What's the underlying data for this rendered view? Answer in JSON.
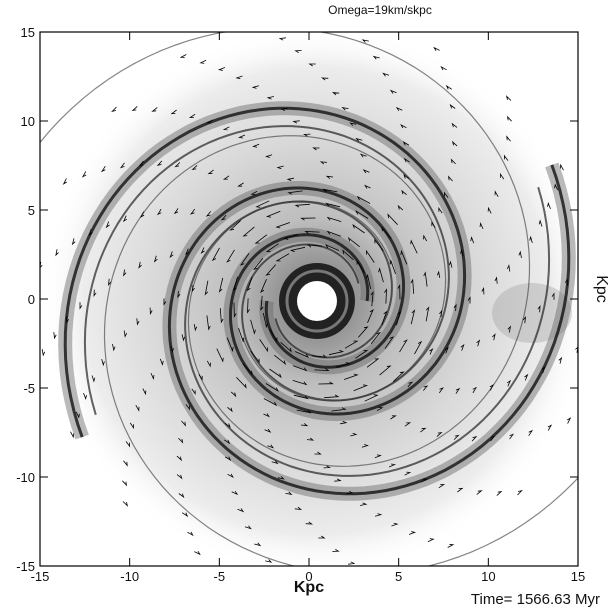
{
  "chart_data": {
    "type": "vector-field",
    "title": "Omega=19km/skpc",
    "x_label": "Kpc",
    "y_label": "Kpc",
    "footer": "Time= 1566.63 Myr",
    "xlim": [
      -15,
      15
    ],
    "ylim": [
      -15,
      15
    ],
    "xticks": [
      -15,
      -10,
      -5,
      0,
      5,
      10,
      15
    ],
    "yticks": [
      -15,
      -10,
      -5,
      0,
      5,
      10,
      15
    ]
  }
}
